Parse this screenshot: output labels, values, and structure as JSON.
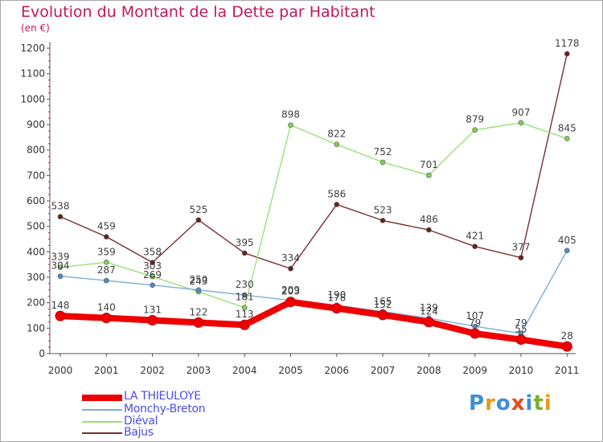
{
  "header": {
    "title": "Evolution du Montant de la Dette par Habitant",
    "unit": "(en €)"
  },
  "colors": {
    "title": "#c2185b",
    "axis": "#555555",
    "grid": "#e3e3e3",
    "legend_text": "#4c4ce8"
  },
  "logo": {
    "text": "Proxiti",
    "letters": [
      "P",
      "r",
      "o",
      "x",
      "i",
      "t",
      "i"
    ],
    "letter_colors": [
      "#3b8fd6",
      "#e89a1a",
      "#3b8fd6",
      "#e84a1a",
      "#3b8fd6",
      "#7ab02c",
      "#e89a1a"
    ]
  },
  "chart_data": {
    "type": "line",
    "title": "Evolution du Montant de la Dette par Habitant",
    "subtitle": "(en €)",
    "xlabel": "",
    "ylabel": "",
    "x": [
      "2000",
      "2001",
      "2002",
      "2003",
      "2004",
      "2005",
      "2006",
      "2007",
      "2008",
      "2009",
      "2010",
      "2011"
    ],
    "ylim": [
      0,
      1200
    ],
    "yticks": [
      0,
      100,
      200,
      300,
      400,
      500,
      600,
      700,
      800,
      900,
      1000,
      1100,
      1200
    ],
    "grid": false,
    "legend_position": "bottom-left",
    "series": [
      {
        "name": "LA THIEULOYE",
        "color": "#ee0000",
        "point_color": "#ee0000",
        "label_color": "#404040",
        "emphasis": true,
        "values": [
          148,
          140,
          131,
          122,
          113,
          203,
          178,
          152,
          124,
          79,
          55,
          28
        ],
        "labels": [
          "148",
          "140",
          "131",
          "122",
          "113",
          "203",
          "178",
          "152",
          "124",
          "79",
          "55",
          "28"
        ]
      },
      {
        "name": "Monchy-Breton",
        "color": "#7eaed6",
        "point_color": "#4a8ed0",
        "label_color": "#404040",
        "values": [
          304,
          287,
          269,
          250,
          230,
          209,
          190,
          165,
          139,
          107,
          79,
          405
        ],
        "labels": [
          "304",
          "287",
          "269",
          "250",
          "230",
          "209",
          "190",
          "165",
          "139",
          "107",
          "79",
          "405"
        ]
      },
      {
        "name": "Diéval",
        "color": "#9ae07a",
        "point_color": "#7ed04f",
        "label_color": "#404040",
        "values": [
          339,
          359,
          303,
          243,
          181,
          898,
          822,
          752,
          701,
          879,
          907,
          845
        ],
        "labels": [
          "339",
          "359",
          "303",
          "243",
          "181",
          "898",
          "822",
          "752",
          "701",
          "879",
          "907",
          "845"
        ]
      },
      {
        "name": "Bajus",
        "color": "#7a2e2e",
        "point_color": "#6a2020",
        "label_color": "#404040",
        "values": [
          538,
          459,
          358,
          525,
          395,
          334,
          586,
          523,
          486,
          421,
          377,
          1178
        ],
        "labels": [
          "538",
          "459",
          "358",
          "525",
          "395",
          "334",
          "586",
          "523",
          "486",
          "421",
          "377",
          "1178"
        ]
      }
    ]
  }
}
